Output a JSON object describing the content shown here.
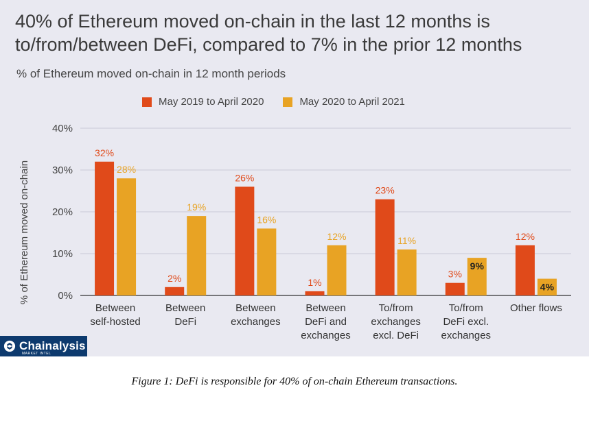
{
  "title": "40% of Ethereum moved on-chain in the last 12 months is to/from/between DeFi, compared to 7% in the prior 12 months",
  "caption": "Figure 1: DeFi is responsible for 40% of on-chain Ethereum transactions.",
  "logo": {
    "name": "Chainalysis",
    "sub": "MARKET INTEL",
    "icon": "chainalysis-logo-icon"
  },
  "colors": {
    "series1": "#e04a1a",
    "series2": "#e8a324",
    "panel": "#e9e9f1",
    "grid": "#c9c9d6"
  },
  "chart_data": {
    "type": "bar",
    "title": "40% of Ethereum moved on-chain in the last 12 months is to/from/between DeFi, compared to 7% in the prior 12 months",
    "subtitle": "% of Ethereum moved on-chain in 12 month periods",
    "xlabel": "",
    "ylabel": "% of Ethereum moved on-chain",
    "ylim": [
      0,
      40
    ],
    "yticks": [
      "0%",
      "10%",
      "20%",
      "30%",
      "40%"
    ],
    "grid": true,
    "legend_position": "top",
    "categories": [
      [
        "Between",
        "self-hosted"
      ],
      [
        "Between",
        "DeFi"
      ],
      [
        "Between",
        "exchanges"
      ],
      [
        "Between",
        "DeFi and",
        "exchanges"
      ],
      [
        "To/from",
        "exchanges",
        "excl. DeFi"
      ],
      [
        "To/from",
        "DeFi excl.",
        "exchanges"
      ],
      [
        "Other flows"
      ]
    ],
    "series": [
      {
        "name": "May 2019 to April 2020",
        "values": [
          32,
          2,
          26,
          1,
          23,
          3,
          12
        ],
        "labels": [
          "32%",
          "2%",
          "26%",
          "1%",
          "23%",
          "3%",
          "12%"
        ]
      },
      {
        "name": "May 2020 to April 2021",
        "values": [
          28,
          19,
          16,
          12,
          11,
          9,
          4
        ],
        "labels": [
          "28%",
          "19%",
          "16%",
          "12%",
          "11%",
          "9%",
          "4%"
        ]
      }
    ]
  }
}
